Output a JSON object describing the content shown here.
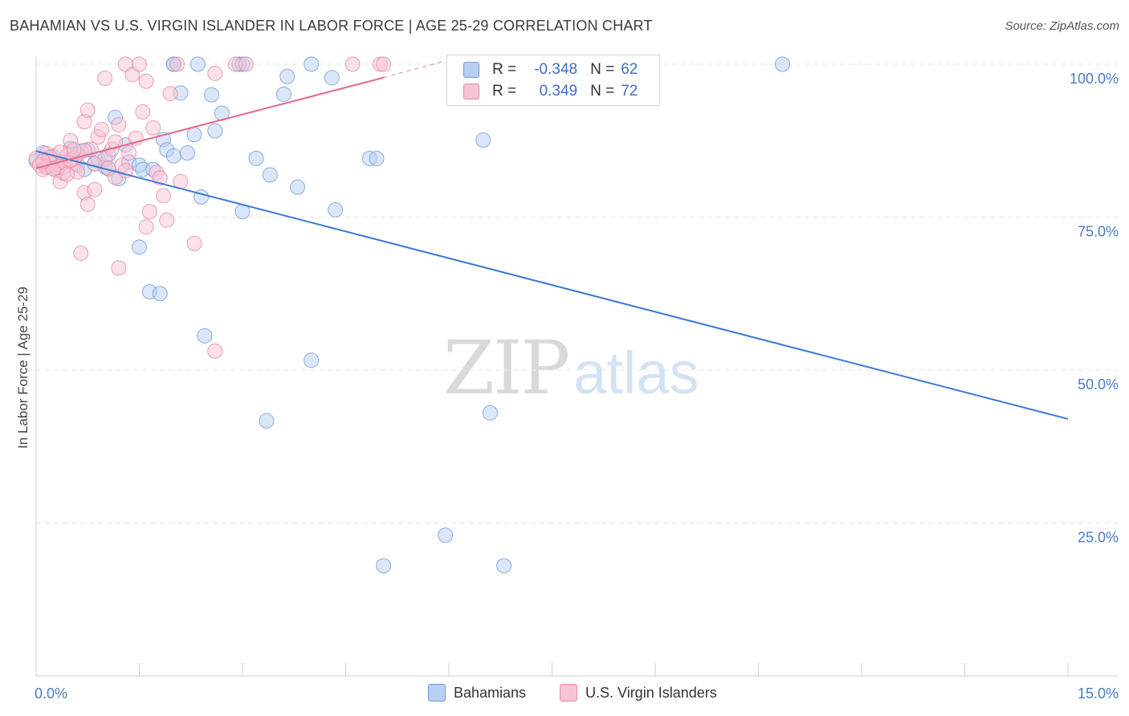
{
  "header": {
    "title": "BAHAMIAN VS U.S. VIRGIN ISLANDER IN LABOR FORCE | AGE 25-29 CORRELATION CHART",
    "source": "Source: ZipAtlas.com"
  },
  "watermark": {
    "zip": "ZIP",
    "atlas": "atlas"
  },
  "legend": {
    "r_label": "R =",
    "n_label": "N =",
    "rows": [
      {
        "name": "Bahamians",
        "r": "-0.348",
        "n": "62",
        "color": "#6f9ad6"
      },
      {
        "name": "U.S. Virgin Islanders",
        "r": "0.349",
        "n": "72",
        "color": "#e68aa6"
      }
    ]
  },
  "bottom_legend": {
    "series1": "Bahamians",
    "series2": "U.S. Virgin Islanders"
  },
  "colors": {
    "blue": "#3a78d4",
    "pink": "#e4688f",
    "blue_fill": "#b7d0f2",
    "pink_fill": "#f8c3d3",
    "tick": "#4a7cc7"
  },
  "chart_data": {
    "type": "scatter",
    "title": "BAHAMIAN VS U.S. VIRGIN ISLANDER IN LABOR FORCE | AGE 25-29 CORRELATION CHART",
    "xlabel": "",
    "ylabel": "In Labor Force | Age 25-29",
    "xlim": [
      0,
      15
    ],
    "ylim": [
      0,
      100
    ],
    "x_ticks": [
      "0.0%",
      "15.0%"
    ],
    "y_ticks": [
      {
        "value": 100,
        "label": "100.0%"
      },
      {
        "value": 75,
        "label": "75.0%"
      },
      {
        "value": 50,
        "label": "50.0%"
      },
      {
        "value": 25,
        "label": "25.0%"
      }
    ],
    "grid": true,
    "series": [
      {
        "name": "Bahamians",
        "color": "#3a78d4",
        "trend": {
          "x": [
            0,
            15
          ],
          "y": [
            85.8,
            42.0
          ]
        },
        "points": [
          [
            0.0,
            84.2
          ],
          [
            0.1,
            85.5
          ],
          [
            0.15,
            84.0
          ],
          [
            0.2,
            83.5
          ],
          [
            0.3,
            84.1
          ],
          [
            0.4,
            83.2
          ],
          [
            0.5,
            86.2
          ],
          [
            0.6,
            83.5
          ],
          [
            0.7,
            82.8
          ],
          [
            0.75,
            86.0
          ],
          [
            0.85,
            83.8
          ],
          [
            0.9,
            84.5
          ],
          [
            1.0,
            83.2
          ],
          [
            1.05,
            85.2
          ],
          [
            1.15,
            91.3
          ],
          [
            1.2,
            81.3
          ],
          [
            1.3,
            86.8
          ],
          [
            1.35,
            84.0
          ],
          [
            1.5,
            83.5
          ],
          [
            1.5,
            70.1
          ],
          [
            1.55,
            82.8
          ],
          [
            1.65,
            62.8
          ],
          [
            1.7,
            82.8
          ],
          [
            1.85,
            87.7
          ],
          [
            1.9,
            86.0
          ],
          [
            2.0,
            85.0
          ],
          [
            2.1,
            95.3
          ],
          [
            2.0,
            100.0
          ],
          [
            2.0,
            100.0
          ],
          [
            2.2,
            85.5
          ],
          [
            2.3,
            88.5
          ],
          [
            2.35,
            100.0
          ],
          [
            2.4,
            78.3
          ],
          [
            2.45,
            55.6
          ],
          [
            2.55,
            95.0
          ],
          [
            2.6,
            89.1
          ],
          [
            2.7,
            92.0
          ],
          [
            2.95,
            100.0
          ],
          [
            3.0,
            75.9
          ],
          [
            3.0,
            100.0
          ],
          [
            3.2,
            84.6
          ],
          [
            3.35,
            41.7
          ],
          [
            3.4,
            81.9
          ],
          [
            3.6,
            95.1
          ],
          [
            3.65,
            98.0
          ],
          [
            3.8,
            79.9
          ],
          [
            4.0,
            51.6
          ],
          [
            4.0,
            100.0
          ],
          [
            4.3,
            97.8
          ],
          [
            4.35,
            76.2
          ],
          [
            4.85,
            84.6
          ],
          [
            4.95,
            84.6
          ],
          [
            5.05,
            18.0
          ],
          [
            5.95,
            23.0
          ],
          [
            6.5,
            87.6
          ],
          [
            6.6,
            43.0
          ],
          [
            6.8,
            18.0
          ],
          [
            10.85,
            100.0
          ],
          [
            1.8,
            62.5
          ],
          [
            1.05,
            82.9
          ],
          [
            0.25,
            84.9
          ],
          [
            0.65,
            85.8
          ]
        ]
      },
      {
        "name": "U.S. Virgin Islanders",
        "color": "#e4688f",
        "trend": {
          "x": [
            0,
            5.05
          ],
          "y": [
            83.0,
            97.8
          ]
        },
        "trend_extension": {
          "x": [
            5.05,
            5.9
          ],
          "y": [
            97.8,
            100.4
          ]
        },
        "points": [
          [
            0.0,
            84.6
          ],
          [
            0.05,
            83.5
          ],
          [
            0.1,
            82.8
          ],
          [
            0.15,
            85.4
          ],
          [
            0.2,
            83.9
          ],
          [
            0.25,
            84.4
          ],
          [
            0.3,
            82.6
          ],
          [
            0.35,
            80.8
          ],
          [
            0.35,
            83.5
          ],
          [
            0.4,
            82.2
          ],
          [
            0.45,
            85.1
          ],
          [
            0.5,
            87.5
          ],
          [
            0.55,
            84.6
          ],
          [
            0.55,
            83.8
          ],
          [
            0.6,
            85.2
          ],
          [
            0.65,
            69.1
          ],
          [
            0.7,
            79.0
          ],
          [
            0.7,
            90.6
          ],
          [
            0.75,
            92.5
          ],
          [
            0.75,
            77.1
          ],
          [
            0.8,
            86.1
          ],
          [
            0.85,
            79.5
          ],
          [
            0.9,
            88.1
          ],
          [
            0.95,
            89.3
          ],
          [
            1.0,
            97.7
          ],
          [
            1.0,
            84.5
          ],
          [
            1.05,
            83.0
          ],
          [
            1.1,
            86.1
          ],
          [
            1.15,
            81.5
          ],
          [
            1.2,
            66.7
          ],
          [
            1.2,
            90.1
          ],
          [
            1.25,
            83.5
          ],
          [
            1.3,
            100.0
          ],
          [
            1.35,
            85.5
          ],
          [
            1.4,
            98.3
          ],
          [
            1.45,
            87.9
          ],
          [
            1.5,
            100.0
          ],
          [
            1.55,
            92.2
          ],
          [
            1.6,
            97.2
          ],
          [
            1.6,
            73.4
          ],
          [
            1.65,
            75.9
          ],
          [
            1.7,
            89.6
          ],
          [
            1.75,
            82.3
          ],
          [
            1.8,
            81.4
          ],
          [
            1.85,
            78.5
          ],
          [
            1.9,
            74.5
          ],
          [
            1.95,
            95.2
          ],
          [
            2.05,
            100.0
          ],
          [
            2.1,
            80.8
          ],
          [
            2.3,
            70.7
          ],
          [
            2.6,
            98.5
          ],
          [
            2.6,
            53.1
          ],
          [
            2.9,
            100.0
          ],
          [
            3.05,
            100.0
          ],
          [
            4.6,
            100.0
          ],
          [
            5.0,
            100.0
          ],
          [
            5.05,
            100.0
          ],
          [
            0.2,
            84.8
          ],
          [
            0.3,
            83.1
          ],
          [
            0.4,
            84.0
          ],
          [
            0.6,
            82.4
          ],
          [
            0.15,
            83.2
          ],
          [
            0.25,
            82.9
          ],
          [
            0.5,
            84.3
          ],
          [
            0.45,
            82.0
          ],
          [
            0.7,
            85.9
          ],
          [
            1.15,
            87.3
          ],
          [
            1.3,
            82.6
          ],
          [
            0.55,
            86.0
          ],
          [
            0.1,
            84.1
          ],
          [
            0.35,
            85.6
          ],
          [
            0.85,
            83.7
          ]
        ]
      }
    ]
  }
}
